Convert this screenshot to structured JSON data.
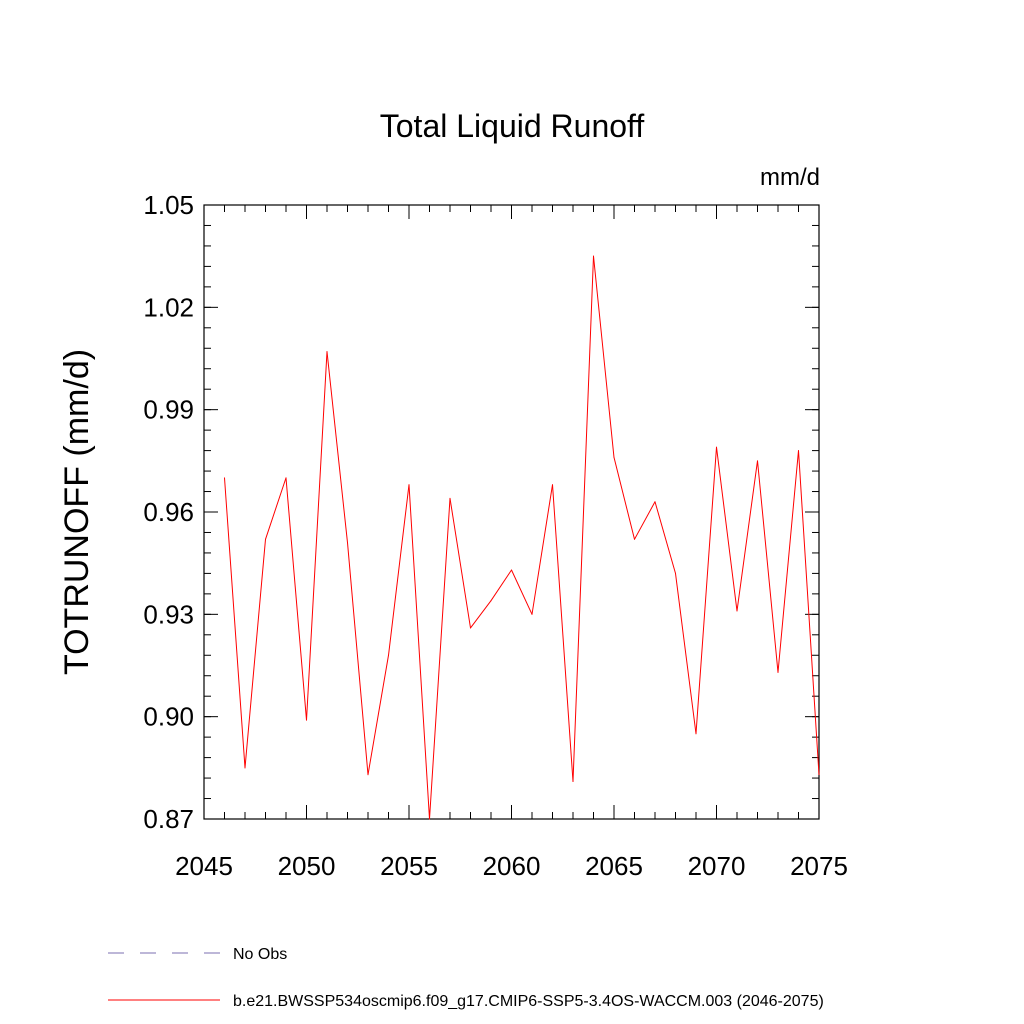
{
  "chart_data": {
    "type": "line",
    "title": "Total Liquid Runoff",
    "units": "mm/d",
    "ylabel": "TOTRUNOFF  (mm/d)",
    "xlabel": "",
    "xlim": [
      2045,
      2075
    ],
    "ylim": [
      0.87,
      1.05
    ],
    "x_ticks": [
      2045,
      2050,
      2055,
      2060,
      2065,
      2070,
      2075
    ],
    "x_tick_labels": [
      "2045",
      "2050",
      "2055",
      "2060",
      "2065",
      "2070",
      "2075"
    ],
    "y_ticks": [
      0.87,
      0.9,
      0.93,
      0.96,
      0.99,
      1.02,
      1.05
    ],
    "y_tick_labels": [
      "0.87",
      "0.90",
      "0.93",
      "0.96",
      "0.99",
      "1.02",
      "1.05"
    ],
    "grid": false,
    "legend_position": "bottom-left",
    "series": [
      {
        "name": "b.e21.BWSSP534oscmip6.f09_g17.CMIP6-SSP5-3.4OS-WACCM.003 (2046-2075)",
        "color": "#ff0000",
        "style": "solid",
        "x": [
          2046,
          2047,
          2048,
          2049,
          2050,
          2051,
          2052,
          2053,
          2054,
          2055,
          2056,
          2057,
          2058,
          2059,
          2060,
          2061,
          2062,
          2063,
          2064,
          2065,
          2066,
          2067,
          2068,
          2069,
          2070,
          2071,
          2072,
          2073,
          2074,
          2075
        ],
        "values": [
          0.97,
          0.885,
          0.952,
          0.97,
          0.899,
          1.007,
          0.951,
          0.883,
          0.918,
          0.968,
          0.87,
          0.964,
          0.926,
          0.934,
          0.943,
          0.93,
          0.968,
          0.881,
          1.035,
          0.976,
          0.952,
          0.963,
          0.942,
          0.895,
          0.979,
          0.931,
          0.975,
          0.913,
          0.978,
          0.883
        ]
      }
    ],
    "legend": [
      {
        "label": "No Obs",
        "color": "#7b6fb0",
        "style": "dashed"
      },
      {
        "label": "b.e21.BWSSP534oscmip6.f09_g17.CMIP6-SSP5-3.4OS-WACCM.003 (2046-2075)",
        "color": "#ff0000",
        "style": "solid"
      }
    ]
  }
}
